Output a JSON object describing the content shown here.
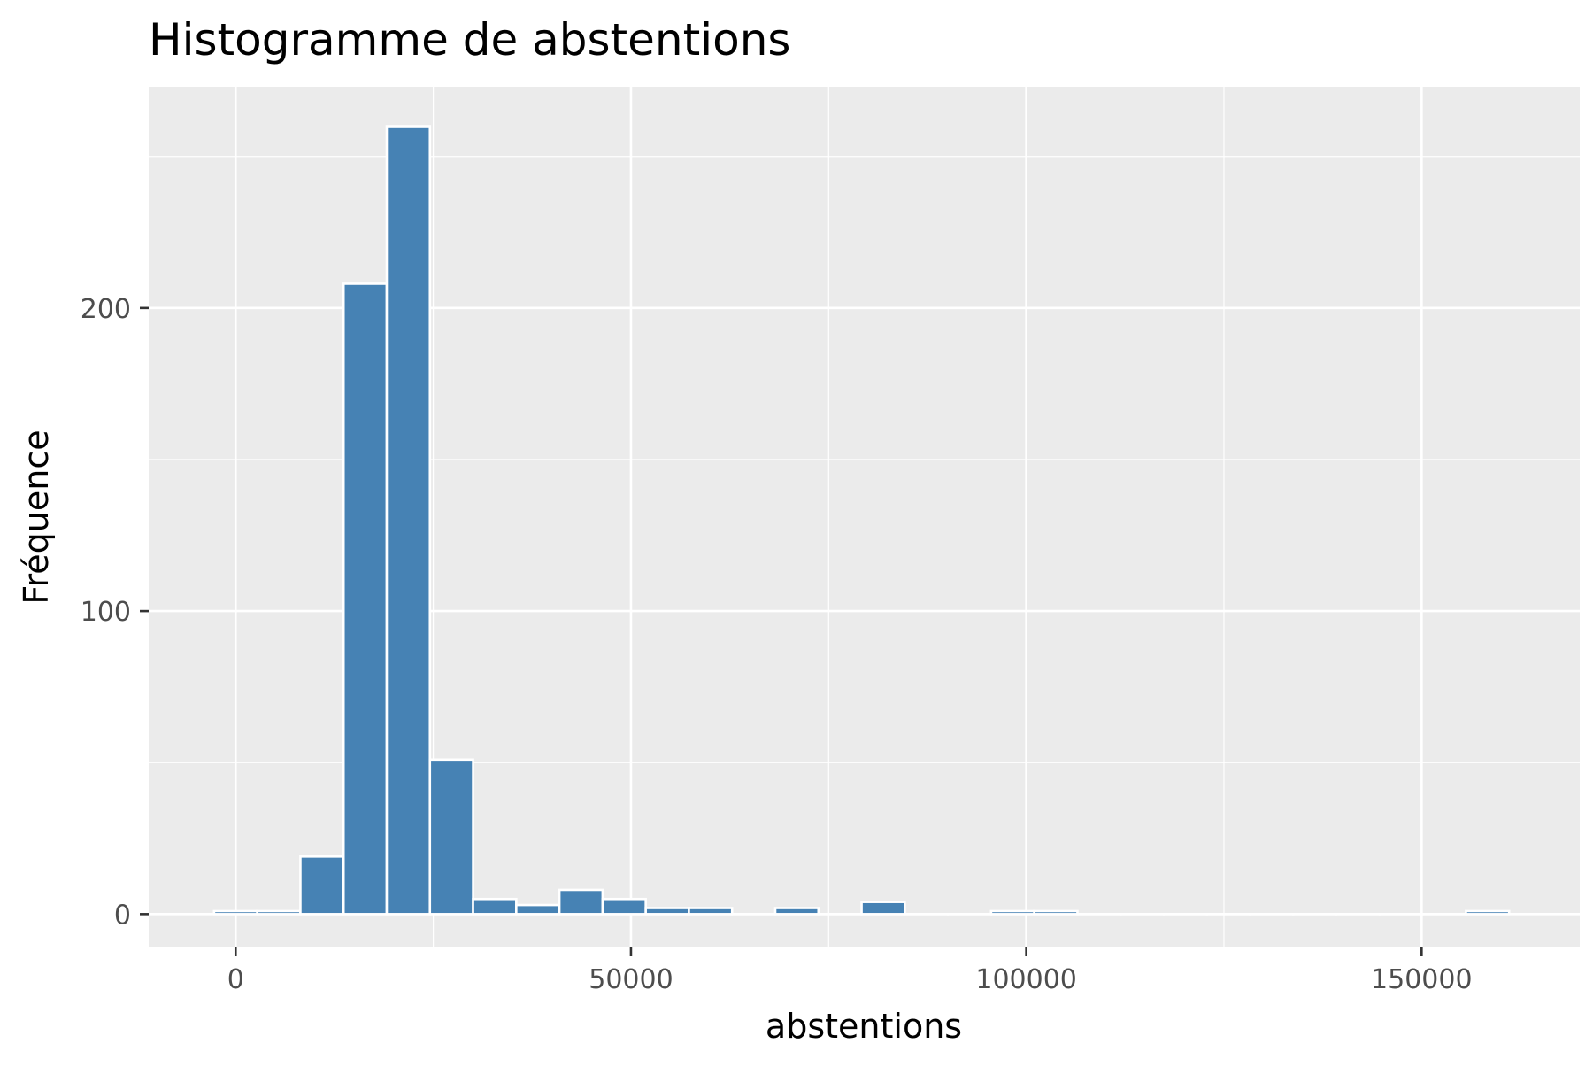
{
  "chart_data": {
    "type": "bar",
    "title": "Histogramme de abstentions",
    "xlabel": "abstentions",
    "ylabel": "Fréquence",
    "xlim": [
      -11000,
      170000
    ],
    "ylim": [
      -11,
      273
    ],
    "x_ticks": [
      0,
      50000,
      100000,
      150000
    ],
    "x_tick_labels": [
      "0",
      "50000",
      "100000",
      "150000"
    ],
    "y_ticks": [
      0,
      100,
      200
    ],
    "y_tick_labels": [
      "0",
      "100",
      "200"
    ],
    "x_minor_ticks": [
      25000,
      75000,
      125000
    ],
    "y_minor_ticks": [
      50,
      150,
      250
    ],
    "grid": true,
    "legend": "none",
    "colors": {
      "bar_fill": "#4682b4",
      "bar_stroke": "#ffffff",
      "panel_background": "#ebebeb",
      "grid": "#ffffff",
      "tick_mark": "#333333"
    },
    "bins": [
      {
        "x_start": -2730,
        "x_end": 2730,
        "count": 1
      },
      {
        "x_start": 2730,
        "x_end": 8190,
        "count": 1
      },
      {
        "x_start": 8190,
        "x_end": 13650,
        "count": 19
      },
      {
        "x_start": 13650,
        "x_end": 19110,
        "count": 208
      },
      {
        "x_start": 19110,
        "x_end": 24570,
        "count": 260
      },
      {
        "x_start": 24570,
        "x_end": 30030,
        "count": 51
      },
      {
        "x_start": 30030,
        "x_end": 35490,
        "count": 5
      },
      {
        "x_start": 35490,
        "x_end": 40950,
        "count": 3
      },
      {
        "x_start": 40950,
        "x_end": 46410,
        "count": 8
      },
      {
        "x_start": 46410,
        "x_end": 51870,
        "count": 5
      },
      {
        "x_start": 51870,
        "x_end": 57330,
        "count": 2
      },
      {
        "x_start": 57330,
        "x_end": 62790,
        "count": 2
      },
      {
        "x_start": 62790,
        "x_end": 68250,
        "count": 0
      },
      {
        "x_start": 68250,
        "x_end": 73710,
        "count": 2
      },
      {
        "x_start": 73710,
        "x_end": 79170,
        "count": 0
      },
      {
        "x_start": 79170,
        "x_end": 84630,
        "count": 4
      },
      {
        "x_start": 84630,
        "x_end": 90090,
        "count": 0
      },
      {
        "x_start": 90090,
        "x_end": 95550,
        "count": 0
      },
      {
        "x_start": 95550,
        "x_end": 101010,
        "count": 1
      },
      {
        "x_start": 101010,
        "x_end": 106470,
        "count": 1
      },
      {
        "x_start": 106470,
        "x_end": 111930,
        "count": 0
      },
      {
        "x_start": 111930,
        "x_end": 117390,
        "count": 0
      },
      {
        "x_start": 117390,
        "x_end": 122850,
        "count": 0
      },
      {
        "x_start": 122850,
        "x_end": 128310,
        "count": 0
      },
      {
        "x_start": 128310,
        "x_end": 133770,
        "count": 0
      },
      {
        "x_start": 133770,
        "x_end": 139230,
        "count": 0
      },
      {
        "x_start": 139230,
        "x_end": 144690,
        "count": 0
      },
      {
        "x_start": 144690,
        "x_end": 150150,
        "count": 0
      },
      {
        "x_start": 150150,
        "x_end": 155610,
        "count": 0
      },
      {
        "x_start": 155610,
        "x_end": 161070,
        "count": 1
      }
    ]
  }
}
